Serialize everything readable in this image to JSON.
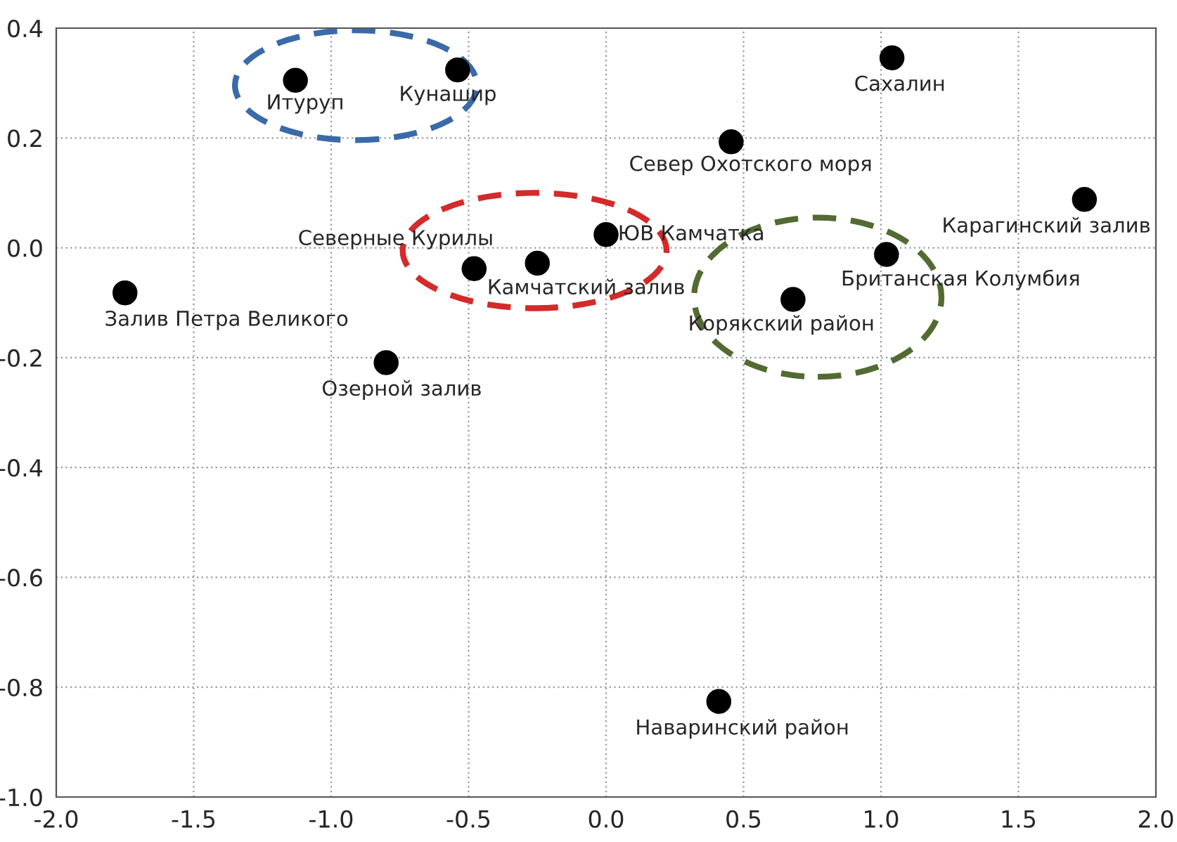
{
  "chart_data": {
    "type": "scatter",
    "series": [
      {
        "color": "#000000",
        "x": [
          -1.13,
          -0.54,
          1.04,
          0.455,
          1.74,
          0.0,
          -0.48,
          -0.25,
          1.02,
          0.68,
          -1.75,
          -0.8,
          0.41
        ],
        "values": [
          0.305,
          0.324,
          0.346,
          0.193,
          0.088,
          0.024,
          -0.038,
          -0.028,
          -0.012,
          -0.094,
          -0.082,
          -0.209,
          -0.826
        ]
      }
    ],
    "annotations": [
      {
        "text": "Итуруп",
        "x": -1.13,
        "y": 0.305
      },
      {
        "text": "Кунашир",
        "x": -0.54,
        "y": 0.324
      },
      {
        "text": "Сахалин",
        "x": 1.04,
        "y": 0.346
      },
      {
        "text": "Север Охотского моря",
        "x": 0.455,
        "y": 0.193
      },
      {
        "text": "Карагинский залив",
        "x": 1.74,
        "y": 0.088
      },
      {
        "text": "ЮВ Камчатка",
        "x": 0.0,
        "y": 0.024
      },
      {
        "text": "Северные Курилы",
        "x": -0.48,
        "y": -0.038
      },
      {
        "text": "Камчатский залив",
        "x": -0.25,
        "y": -0.028
      },
      {
        "text": "Британская Колумбия",
        "x": 1.02,
        "y": -0.012
      },
      {
        "text": "Корякский район",
        "x": 0.68,
        "y": -0.094
      },
      {
        "text": "Залив Петра Великого",
        "x": -1.75,
        "y": -0.082
      },
      {
        "text": "Озерной залив",
        "x": -0.8,
        "y": -0.209
      },
      {
        "text": "Наваринский район",
        "x": 0.41,
        "y": -0.826
      }
    ],
    "xlim": [
      -2.0,
      2.0
    ],
    "xticks": [
      {
        "value": -2.0,
        "label": "-2.0"
      },
      {
        "value": -1.5,
        "label": "-1.5"
      },
      {
        "value": -1.0,
        "label": "-1.0"
      },
      {
        "value": -0.5,
        "label": "-0.5"
      },
      {
        "value": 0.0,
        "label": "0.0"
      },
      {
        "value": 0.5,
        "label": "0.5"
      },
      {
        "value": 1.0,
        "label": "1.0"
      },
      {
        "value": 1.5,
        "label": "1.5"
      },
      {
        "value": 2.0,
        "label": "2.0"
      }
    ],
    "ylim": [
      -1.0,
      0.4
    ],
    "yticks": [
      {
        "value": -1.0,
        "label": "-1.0"
      },
      {
        "value": -0.8,
        "label": "-0.8"
      },
      {
        "value": -0.6,
        "label": "-0.6"
      },
      {
        "value": -0.4,
        "label": "-0.4"
      },
      {
        "value": -0.2,
        "label": "-0.2"
      },
      {
        "value": 0.0,
        "label": "0.0"
      },
      {
        "value": 0.2,
        "label": "0.2"
      },
      {
        "value": 0.4,
        "label": "0.4"
      }
    ],
    "grid": true,
    "marker": "circle"
  }
}
